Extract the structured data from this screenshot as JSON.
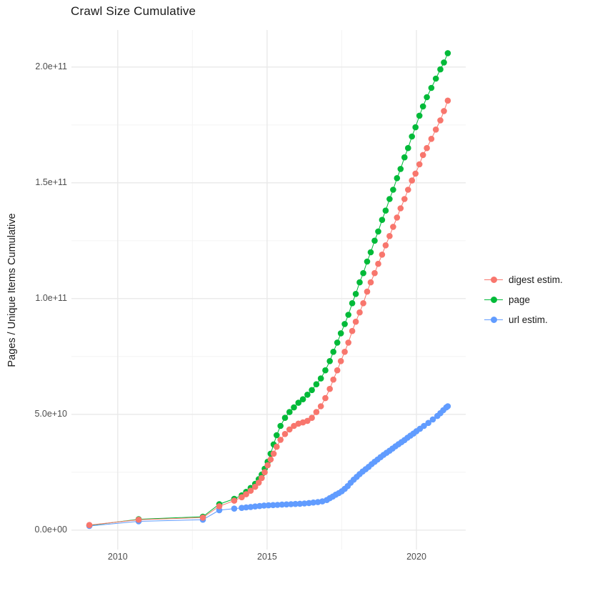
{
  "title": "Crawl Size Cumulative",
  "colors": {
    "digest": "#F8766D",
    "page": "#00BA38",
    "url": "#619CFF",
    "grid_major": "#E9E9E9",
    "grid_minor": "#F4F4F4",
    "axis_text": "#4D4D4D",
    "text": "#1A1A1A",
    "background": "#FFFFFF"
  },
  "chart_data": {
    "type": "line",
    "title": "Crawl Size Cumulative",
    "xlabel": "",
    "ylabel": "Pages / Unique Items Cumulative",
    "grid": true,
    "legend_position": "right",
    "xlim": [
      2008.45,
      2021.65
    ],
    "ylim": [
      -8400000000,
      216000000000
    ],
    "x_ticks": [
      {
        "value": 2010,
        "label": "2010"
      },
      {
        "value": 2015,
        "label": "2015"
      },
      {
        "value": 2020,
        "label": "2020"
      }
    ],
    "x_minor_gridlines": [
      2012.5,
      2017.5
    ],
    "y_ticks": [
      {
        "value": 0,
        "label": "0.0e+00"
      },
      {
        "value": 50000000000,
        "label": "5.0e+10"
      },
      {
        "value": 100000000000,
        "label": "1.0e+11"
      },
      {
        "value": 150000000000,
        "label": "1.5e+11"
      },
      {
        "value": 200000000000,
        "label": "2.0e+11"
      }
    ],
    "y_minor_gridlines": [
      25000000000,
      75000000000,
      125000000000,
      175000000000
    ],
    "draw_order": [
      "page",
      "url estim.",
      "digest estim."
    ],
    "series": [
      {
        "name": "digest estim.",
        "color": "#F8766D",
        "points": [
          [
            2009.05,
            2200000000.0
          ],
          [
            2010.7,
            4500000000.0
          ],
          [
            2012.85,
            5400000000.0
          ],
          [
            2013.4,
            10300000000.0
          ],
          [
            2013.9,
            12700000000.0
          ],
          [
            2014.15,
            14200000000.0
          ],
          [
            2014.3,
            15500000000.0
          ],
          [
            2014.45,
            17000000000.0
          ],
          [
            2014.6,
            18700000000.0
          ],
          [
            2014.72,
            20500000000.0
          ],
          [
            2014.82,
            22500000000.0
          ],
          [
            2014.92,
            25000000000.0
          ],
          [
            2015.02,
            28000000000.0
          ],
          [
            2015.12,
            30500000000.0
          ],
          [
            2015.22,
            33000000000.0
          ],
          [
            2015.32,
            36000000000.0
          ],
          [
            2015.45,
            39000000000.0
          ],
          [
            2015.6,
            41500000000.0
          ],
          [
            2015.75,
            43500000000.0
          ],
          [
            2015.9,
            45000000000.0
          ],
          [
            2016.05,
            46000000000.0
          ],
          [
            2016.2,
            46500000000.0
          ],
          [
            2016.35,
            47200000000.0
          ],
          [
            2016.5,
            48500000000.0
          ],
          [
            2016.65,
            51000000000.0
          ],
          [
            2016.8,
            53500000000.0
          ],
          [
            2016.95,
            57000000000.0
          ],
          [
            2017.1,
            61000000000.0
          ],
          [
            2017.22,
            65000000000.0
          ],
          [
            2017.35,
            69000000000.0
          ],
          [
            2017.47,
            73000000000.0
          ],
          [
            2017.6,
            77000000000.0
          ],
          [
            2017.72,
            81000000000.0
          ],
          [
            2017.85,
            86000000000.0
          ],
          [
            2017.97,
            90000000000.0
          ],
          [
            2018.1,
            94000000000.0
          ],
          [
            2018.22,
            98000000000.0
          ],
          [
            2018.35,
            103000000000.0
          ],
          [
            2018.47,
            107000000000.0
          ],
          [
            2018.6,
            111000000000.0
          ],
          [
            2018.72,
            115000000000.0
          ],
          [
            2018.85,
            119000000000.0
          ],
          [
            2018.97,
            123000000000.0
          ],
          [
            2019.1,
            127000000000.0
          ],
          [
            2019.22,
            131000000000.0
          ],
          [
            2019.35,
            135000000000.0
          ],
          [
            2019.47,
            139000000000.0
          ],
          [
            2019.6,
            143000000000.0
          ],
          [
            2019.72,
            147000000000.0
          ],
          [
            2019.85,
            151000000000.0
          ],
          [
            2019.97,
            154000000000.0
          ],
          [
            2020.1,
            158000000000.0
          ],
          [
            2020.22,
            162000000000.0
          ],
          [
            2020.35,
            165000000000.0
          ],
          [
            2020.5,
            169000000000.0
          ],
          [
            2020.65,
            173000000000.0
          ],
          [
            2020.8,
            177000000000.0
          ],
          [
            2020.92,
            181000000000.0
          ],
          [
            2021.05,
            185500000000.0
          ]
        ]
      },
      {
        "name": "page",
        "color": "#00BA38",
        "points": [
          [
            2009.05,
            2000000000.0
          ],
          [
            2010.7,
            4700000000.0
          ],
          [
            2012.85,
            5800000000.0
          ],
          [
            2013.4,
            11200000000.0
          ],
          [
            2013.9,
            13500000000.0
          ],
          [
            2014.15,
            15000000000.0
          ],
          [
            2014.3,
            16500000000.0
          ],
          [
            2014.45,
            18200000000.0
          ],
          [
            2014.6,
            20000000000.0
          ],
          [
            2014.72,
            22000000000.0
          ],
          [
            2014.82,
            24000000000.0
          ],
          [
            2014.92,
            26500000000.0
          ],
          [
            2015.02,
            29500000000.0
          ],
          [
            2015.12,
            33000000000.0
          ],
          [
            2015.22,
            37000000000.0
          ],
          [
            2015.32,
            41000000000.0
          ],
          [
            2015.45,
            45000000000.0
          ],
          [
            2015.6,
            48500000000.0
          ],
          [
            2015.75,
            51000000000.0
          ],
          [
            2015.9,
            53000000000.0
          ],
          [
            2016.05,
            55000000000.0
          ],
          [
            2016.2,
            56500000000.0
          ],
          [
            2016.35,
            58500000000.0
          ],
          [
            2016.5,
            60500000000.0
          ],
          [
            2016.65,
            63000000000.0
          ],
          [
            2016.8,
            65500000000.0
          ],
          [
            2016.95,
            69000000000.0
          ],
          [
            2017.1,
            73000000000.0
          ],
          [
            2017.22,
            77000000000.0
          ],
          [
            2017.35,
            81000000000.0
          ],
          [
            2017.47,
            85000000000.0
          ],
          [
            2017.6,
            89000000000.0
          ],
          [
            2017.72,
            93000000000.0
          ],
          [
            2017.85,
            98000000000.0
          ],
          [
            2017.97,
            102000000000.0
          ],
          [
            2018.1,
            107000000000.0
          ],
          [
            2018.22,
            111000000000.0
          ],
          [
            2018.35,
            116000000000.0
          ],
          [
            2018.47,
            120000000000.0
          ],
          [
            2018.6,
            125000000000.0
          ],
          [
            2018.72,
            129000000000.0
          ],
          [
            2018.85,
            134000000000.0
          ],
          [
            2018.97,
            138000000000.0
          ],
          [
            2019.1,
            143000000000.0
          ],
          [
            2019.22,
            147000000000.0
          ],
          [
            2019.35,
            152000000000.0
          ],
          [
            2019.47,
            156000000000.0
          ],
          [
            2019.6,
            161000000000.0
          ],
          [
            2019.72,
            165000000000.0
          ],
          [
            2019.85,
            170000000000.0
          ],
          [
            2019.97,
            174000000000.0
          ],
          [
            2020.1,
            179000000000.0
          ],
          [
            2020.22,
            183000000000.0
          ],
          [
            2020.35,
            187000000000.0
          ],
          [
            2020.5,
            191000000000.0
          ],
          [
            2020.65,
            195000000000.0
          ],
          [
            2020.8,
            199000000000.0
          ],
          [
            2020.92,
            202000000000.0
          ],
          [
            2021.05,
            206000000000.0
          ]
        ]
      },
      {
        "name": "url estim.",
        "color": "#619CFF",
        "points": [
          [
            2009.05,
            1800000000.0
          ],
          [
            2010.7,
            3800000000.0
          ],
          [
            2012.85,
            4500000000.0
          ],
          [
            2013.4,
            8600000000.0
          ],
          [
            2013.9,
            9300000000.0
          ],
          [
            2014.15,
            9600000000.0
          ],
          [
            2014.3,
            9800000000.0
          ],
          [
            2014.45,
            10000000000.0
          ],
          [
            2014.6,
            10200000000.0
          ],
          [
            2014.75,
            10400000000.0
          ],
          [
            2014.9,
            10600000000.0
          ],
          [
            2015.05,
            10700000000.0
          ],
          [
            2015.2,
            10800000000.0
          ],
          [
            2015.35,
            10900000000.0
          ],
          [
            2015.5,
            11000000000.0
          ],
          [
            2015.65,
            11100000000.0
          ],
          [
            2015.8,
            11200000000.0
          ],
          [
            2015.95,
            11300000000.0
          ],
          [
            2016.1,
            11400000000.0
          ],
          [
            2016.25,
            11500000000.0
          ],
          [
            2016.4,
            11700000000.0
          ],
          [
            2016.55,
            11900000000.0
          ],
          [
            2016.7,
            12100000000.0
          ],
          [
            2016.85,
            12400000000.0
          ],
          [
            2017.0,
            13000000000.0
          ],
          [
            2017.1,
            13800000000.0
          ],
          [
            2017.2,
            14500000000.0
          ],
          [
            2017.3,
            15300000000.0
          ],
          [
            2017.4,
            16000000000.0
          ],
          [
            2017.5,
            16800000000.0
          ],
          [
            2017.6,
            17800000000.0
          ],
          [
            2017.7,
            19000000000.0
          ],
          [
            2017.8,
            20500000000.0
          ],
          [
            2017.9,
            21800000000.0
          ],
          [
            2018.0,
            23000000000.0
          ],
          [
            2018.1,
            24200000000.0
          ],
          [
            2018.2,
            25300000000.0
          ],
          [
            2018.3,
            26300000000.0
          ],
          [
            2018.4,
            27300000000.0
          ],
          [
            2018.5,
            28500000000.0
          ],
          [
            2018.6,
            29500000000.0
          ],
          [
            2018.7,
            30500000000.0
          ],
          [
            2018.8,
            31500000000.0
          ],
          [
            2018.9,
            32500000000.0
          ],
          [
            2019.0,
            33400000000.0
          ],
          [
            2019.1,
            34300000000.0
          ],
          [
            2019.2,
            35200000000.0
          ],
          [
            2019.3,
            36200000000.0
          ],
          [
            2019.4,
            37100000000.0
          ],
          [
            2019.5,
            38000000000.0
          ],
          [
            2019.6,
            38900000000.0
          ],
          [
            2019.7,
            39900000000.0
          ],
          [
            2019.8,
            40800000000.0
          ],
          [
            2019.9,
            41700000000.0
          ],
          [
            2020.0,
            42700000000.0
          ],
          [
            2020.12,
            43800000000.0
          ],
          [
            2020.25,
            45000000000.0
          ],
          [
            2020.4,
            46300000000.0
          ],
          [
            2020.55,
            47800000000.0
          ],
          [
            2020.7,
            49300000000.0
          ],
          [
            2020.8,
            50500000000.0
          ],
          [
            2020.9,
            51800000000.0
          ],
          [
            2021.0,
            53000000000.0
          ],
          [
            2021.05,
            53500000000.0
          ]
        ]
      }
    ]
  }
}
